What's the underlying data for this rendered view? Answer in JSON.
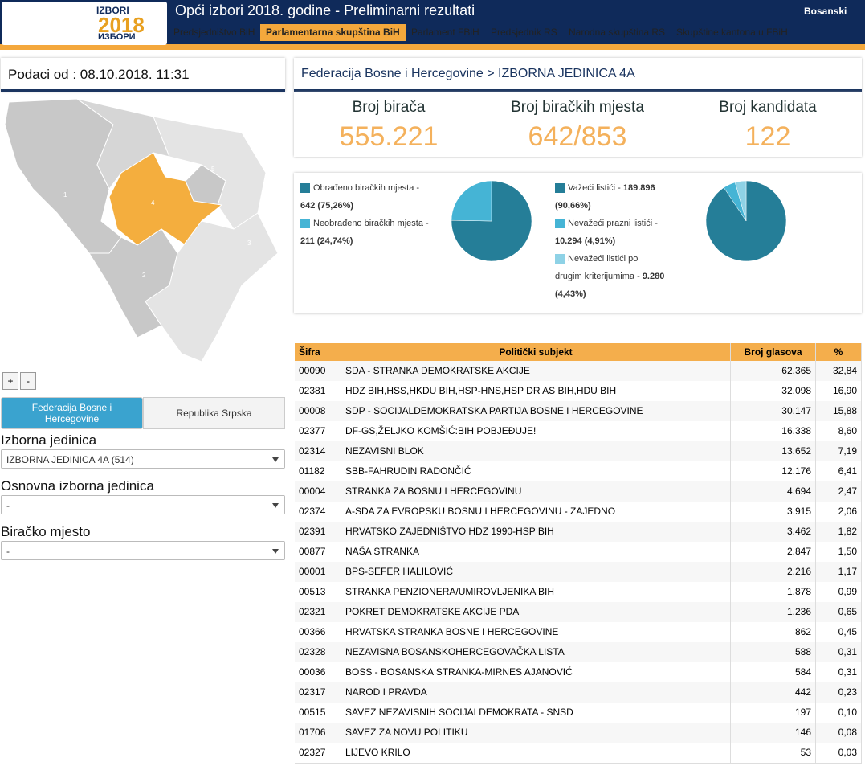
{
  "header": {
    "logo": {
      "top": "IZBORI",
      "year": "2018",
      "bottom": "ИЗБОРИ"
    },
    "title": "Opći izbori 2018. godine - Preliminarni rezultati",
    "language": "Bosanski",
    "nav": [
      "Predsjedništvo BiH",
      "Parlamentarna skupština BiH",
      "Parlament FBiH",
      "Predsjednik RS",
      "Narodna skupština RS",
      "Skupštine kantona u FBiH"
    ],
    "active_nav": 1
  },
  "left": {
    "date": "Podaci od : 08.10.2018. 11:31",
    "map": {
      "regions": [
        "1",
        "2",
        "3",
        "4",
        "5"
      ],
      "zoom": [
        "+",
        "-"
      ]
    },
    "tabs": [
      "Federacija Bosne i Hercegovine",
      "Republika Srpska"
    ],
    "active_tab": 0,
    "filters": [
      {
        "label": "Izborna jedinica",
        "value": "IZBORNA JEDINICA 4A (514)"
      },
      {
        "label": "Osnovna izborna jedinica",
        "value": "-"
      },
      {
        "label": "Biračko mjesto",
        "value": "-"
      }
    ]
  },
  "right": {
    "breadcrumb": "Federacija Bosne i Hercegovine > IZBORNA JEDINICA 4A",
    "stats": [
      {
        "label": "Broj birača",
        "value": "555.221"
      },
      {
        "label": "Broj biračkih mjesta",
        "value": "642/853"
      },
      {
        "label": "Broj kandidata",
        "value": "122"
      }
    ],
    "pies": [
      {
        "items": [
          {
            "label": "Obrađeno biračkih mjesta -",
            "value": 642,
            "value_label": "642 (75,26%)",
            "color": "#257e98"
          },
          {
            "label": "Neobrađeno biračkih mjesta -",
            "value": 211,
            "value_label": "211 (24,74%)",
            "color": "#45b4d5"
          }
        ]
      },
      {
        "items": [
          {
            "label": "Važeći listići -",
            "value": 189896,
            "value_label": "189.896 (90,66%)",
            "color": "#257e98"
          },
          {
            "label": "Nevažeći prazni listići -",
            "value": 10294,
            "value_label": "10.294 (4,91%)",
            "color": "#45b4d5"
          },
          {
            "label": "Nevažeći listići po drugim kriterijumima -",
            "value": 9280,
            "value_label": "9.280 (4,43%)",
            "color": "#8ed2e6"
          }
        ]
      }
    ],
    "table": {
      "columns": [
        "Šifra",
        "Politički subjekt",
        "Broj glasova",
        "%"
      ],
      "rows": [
        [
          "00090",
          "SDA - STRANKA DEMOKRATSKE AKCIJE",
          "62.365",
          "32,84"
        ],
        [
          "02381",
          "HDZ BIH,HSS,HKDU BIH,HSP-HNS,HSP DR AS BIH,HDU BIH",
          "32.098",
          "16,90"
        ],
        [
          "00008",
          "SDP - SOCIJALDEMOKRATSKA PARTIJA BOSNE I HERCEGOVINE",
          "30.147",
          "15,88"
        ],
        [
          "02377",
          "DF-GS,ŽELJKO KOMŠIĆ:BIH POBJEĐUJE!",
          "16.338",
          "8,60"
        ],
        [
          "02314",
          "NEZAVISNI BLOK",
          "13.652",
          "7,19"
        ],
        [
          "01182",
          "SBB-FAHRUDIN RADONČIĆ",
          "12.176",
          "6,41"
        ],
        [
          "00004",
          "STRANKA ZA BOSNU I HERCEGOVINU",
          "4.694",
          "2,47"
        ],
        [
          "02374",
          "A-SDA ZA EVROPSKU BOSNU I HERCEGOVINU - ZAJEDNO",
          "3.915",
          "2,06"
        ],
        [
          "02391",
          "HRVATSKO ZAJEDNIŠTVO HDZ 1990-HSP BIH",
          "3.462",
          "1,82"
        ],
        [
          "00877",
          "NAŠA STRANKA",
          "2.847",
          "1,50"
        ],
        [
          "00001",
          "BPS-SEFER HALILOVIĆ",
          "2.216",
          "1,17"
        ],
        [
          "00513",
          "STRANKA PENZIONERA/UMIROVLJENIKA BIH",
          "1.878",
          "0,99"
        ],
        [
          "02321",
          "POKRET DEMOKRATSKE AKCIJE PDA",
          "1.236",
          "0,65"
        ],
        [
          "00366",
          "HRVATSKA STRANKA BOSNE I HERCEGOVINE",
          "862",
          "0,45"
        ],
        [
          "02328",
          "NEZAVISNA BOSANSKOHERCEGOVAČKA LISTA",
          "588",
          "0,31"
        ],
        [
          "00036",
          "BOSS - BOSANSKA STRANKA-MIRNES AJANOVIĆ",
          "584",
          "0,31"
        ],
        [
          "02317",
          "NAROD I PRAVDA",
          "442",
          "0,23"
        ],
        [
          "00515",
          "SAVEZ NEZAVISNIH SOCIJALDEMOKRATA - SNSD",
          "197",
          "0,10"
        ],
        [
          "01706",
          "SAVEZ ZA NOVU POLITIKU",
          "146",
          "0,08"
        ],
        [
          "02327",
          "LIJEVO KRILO",
          "53",
          "0,03"
        ]
      ]
    }
  }
}
